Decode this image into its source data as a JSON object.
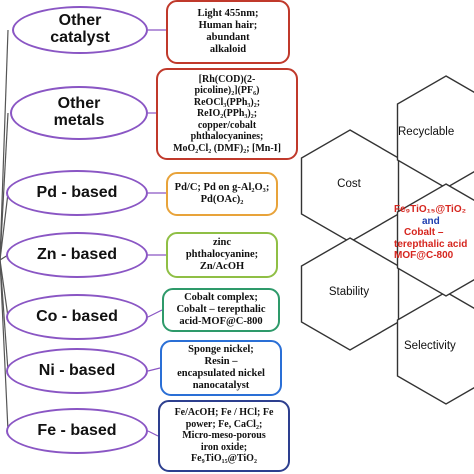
{
  "categories": [
    {
      "label": "Other\ncatalyst",
      "box_color": "#c0392b",
      "items": [
        "Light 455nm;",
        "Human hair;",
        "abundant",
        "alkaloid"
      ]
    },
    {
      "label": "Other\nmetals",
      "box_color": "#c0392b",
      "items": [
        "[Rh(COD)(2-",
        "picoline)₂](PF₆)",
        "ReOCl₃(PPh₃)₂;",
        "ReIO₂(PPh₃)₂;",
        "copper/cobalt",
        "phthalocyanines;",
        "MoO₂Cl₂ (DMF)₂; [Mn-I]"
      ]
    },
    {
      "label": "Pd - based",
      "box_color": "#e8a33a",
      "items": [
        "Pd/C; Pd on g-Al₂O₃;",
        "Pd(OAc)₂"
      ]
    },
    {
      "label": "Zn - based",
      "box_color": "#8fbf45",
      "items": [
        "zinc",
        "phthalocyanine;",
        "Zn/AcOH"
      ]
    },
    {
      "label": "Co - based",
      "box_color": "#2e9a6a",
      "items": [
        "Cobalt complex;",
        "Cobalt – terepthalic",
        "acid-MOF@C-800"
      ]
    },
    {
      "label": "Ni - based",
      "box_color": "#2a6fd6",
      "items": [
        "Sponge nickel;",
        "Resin –",
        "encapsulated nickel",
        "nanocatalyst"
      ]
    },
    {
      "label": "Fe - based",
      "box_color": "#2d3f8f",
      "items": [
        "Fe/AcOH; Fe / HCl; Fe",
        "power; Fe, CaCl₂;",
        "Micro-meso-porous",
        "iron oxide;",
        "Fe₉TiO₁₅@TiO₂"
      ]
    }
  ],
  "hexagons": {
    "cost": "Cost",
    "recyclable": "Recyclable",
    "stability": "Stability",
    "selectivity": "Selectivity"
  },
  "center": {
    "line1": "Fe₉TiO₁₅@TiO₂",
    "line2": "and",
    "line3": "Cobalt –",
    "line4": "terepthalic acid",
    "line5": "MOF@C-800"
  },
  "colors": {
    "ellipse_border": "#8a56c4",
    "hex_border": "#333333",
    "center_red": "#d6261f",
    "center_blue": "#1f3fb0"
  }
}
